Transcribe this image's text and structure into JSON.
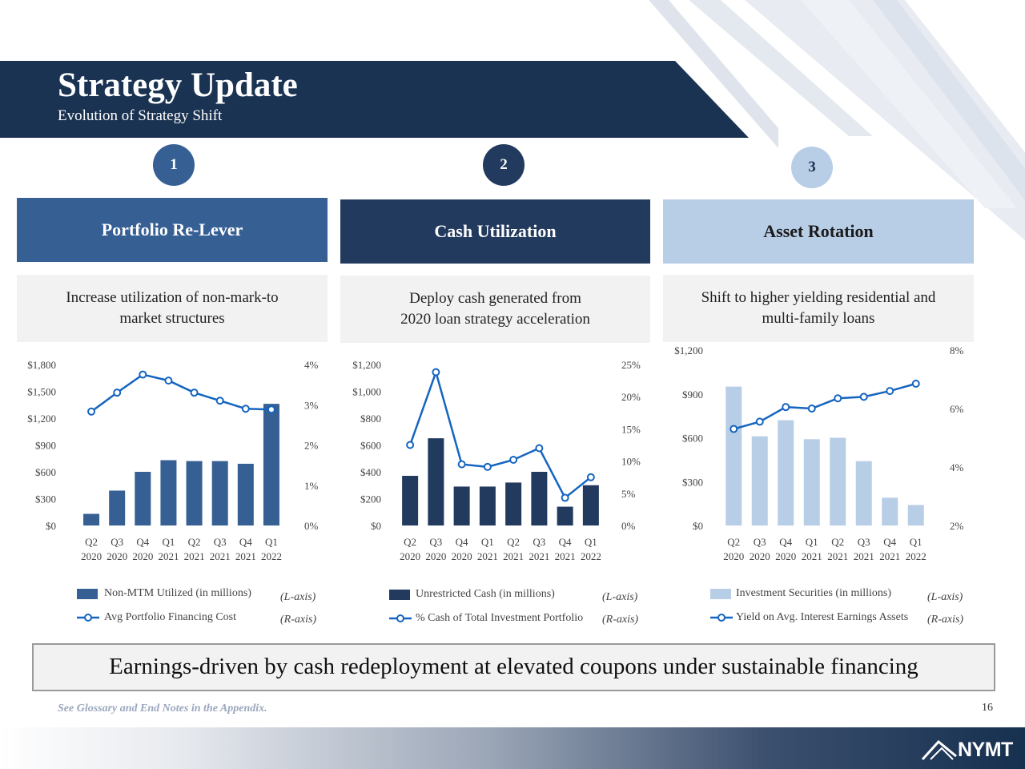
{
  "header": {
    "title": "Strategy Update",
    "subtitle": "Evolution of Strategy Shift"
  },
  "colors": {
    "navy": "#1b3352",
    "pillar1": "#365f93",
    "pillar2": "#223a5e",
    "pillar3": "#b8cde6",
    "line_blue": "#1565c0"
  },
  "pillars": [
    {
      "number": "1",
      "title": "Portfolio Re-Lever",
      "description_lines": [
        "Increase utilization of non-mark-to",
        "market structures"
      ]
    },
    {
      "number": "2",
      "title": "Cash Utilization",
      "description_lines": [
        "Deploy cash generated from",
        "2020 loan strategy acceleration"
      ]
    },
    {
      "number": "3",
      "title": "Asset Rotation",
      "description_lines": [
        "Shift to higher yielding residential and",
        "multi-family loans"
      ]
    }
  ],
  "chart_data": [
    {
      "type": "bar",
      "categories": [
        [
          "Q2",
          "2020"
        ],
        [
          "Q3",
          "2020"
        ],
        [
          "Q4",
          "2020"
        ],
        [
          "Q1",
          "2021"
        ],
        [
          "Q2",
          "2021"
        ],
        [
          "Q3",
          "2021"
        ],
        [
          "Q4",
          "2021"
        ],
        [
          "Q1",
          "2022"
        ]
      ],
      "y_left_ticks": [
        "$0",
        "$300",
        "$600",
        "$900",
        "$1,200",
        "$1,500",
        "$1,800"
      ],
      "y_left_range": [
        0,
        1800
      ],
      "y_right_ticks": [
        "0%",
        "1%",
        "2%",
        "3%",
        "4%"
      ],
      "y_right_range": [
        0,
        4
      ],
      "series": [
        {
          "name": "Non-MTM Utilized (in millions)",
          "kind": "bar",
          "axis": "L-axis",
          "values": [
            130,
            390,
            600,
            730,
            720,
            720,
            690,
            1360
          ]
        },
        {
          "name": "Avg Portfolio Financing Cost",
          "kind": "line",
          "axis": "R-axis",
          "values": [
            2.83,
            3.3,
            3.75,
            3.6,
            3.3,
            3.1,
            2.9,
            2.88
          ]
        }
      ],
      "legend": [
        {
          "label": "Non-MTM Utilized (in millions)",
          "axis": "(L-axis)"
        },
        {
          "label": "Avg Portfolio Financing Cost",
          "axis": "(R-axis)"
        }
      ],
      "colors": {
        "bar": "#365f93",
        "line": "#1565c0"
      }
    },
    {
      "type": "bar",
      "categories": [
        [
          "Q2",
          "2020"
        ],
        [
          "Q3",
          "2020"
        ],
        [
          "Q4",
          "2020"
        ],
        [
          "Q1",
          "2021"
        ],
        [
          "Q2",
          "2021"
        ],
        [
          "Q3",
          "2021"
        ],
        [
          "Q4",
          "2021"
        ],
        [
          "Q1",
          "2022"
        ]
      ],
      "y_left_ticks": [
        "$0",
        "$200",
        "$400",
        "$600",
        "$800",
        "$1,000",
        "$1,200"
      ],
      "y_left_range": [
        0,
        1200
      ],
      "y_right_ticks": [
        "0%",
        "5%",
        "10%",
        "15%",
        "20%",
        "25%"
      ],
      "y_right_range": [
        0,
        25
      ],
      "series": [
        {
          "name": "Unrestricted Cash (in millions)",
          "kind": "bar",
          "axis": "L-axis",
          "values": [
            370,
            650,
            290,
            290,
            320,
            400,
            140,
            300
          ]
        },
        {
          "name": "% Cash of Total Investment Portfolio",
          "kind": "line",
          "axis": "R-axis",
          "values": [
            12.5,
            23.8,
            9.5,
            9.1,
            10.2,
            12,
            4.3,
            7.5
          ]
        }
      ],
      "legend": [
        {
          "label": "Unrestricted Cash (in millions)",
          "axis": "(L-axis)"
        },
        {
          "label": "% Cash of Total Investment Portfolio",
          "axis": "(R-axis)"
        }
      ],
      "colors": {
        "bar": "#223a5e",
        "line": "#1565c0"
      }
    },
    {
      "type": "bar",
      "categories": [
        [
          "Q2",
          "2020"
        ],
        [
          "Q3",
          "2020"
        ],
        [
          "Q4",
          "2020"
        ],
        [
          "Q1",
          "2021"
        ],
        [
          "Q2",
          "2021"
        ],
        [
          "Q3",
          "2021"
        ],
        [
          "Q4",
          "2021"
        ],
        [
          "Q1",
          "2022"
        ]
      ],
      "y_left_ticks": [
        "$0",
        "$300",
        "$600",
        "$900",
        "$1,200"
      ],
      "y_left_range": [
        0,
        1200
      ],
      "y_right_ticks": [
        "2%",
        "4%",
        "6%",
        "8%"
      ],
      "y_right_range": [
        2,
        8
      ],
      "series": [
        {
          "name": "Investment Securities (in millions)",
          "kind": "bar",
          "axis": "L-axis",
          "values": [
            950,
            610,
            720,
            590,
            600,
            440,
            190,
            140
          ]
        },
        {
          "name": "Yield on Avg. Interest Earnings Assets",
          "kind": "line",
          "axis": "R-axis",
          "values": [
            5.3,
            5.55,
            6.05,
            6.0,
            6.35,
            6.4,
            6.6,
            6.85
          ]
        }
      ],
      "legend": [
        {
          "label": "Investment Securities (in millions)",
          "axis": "(L-axis)"
        },
        {
          "label": "Yield on Avg. Interest Earnings Assets",
          "axis": "(R-axis)"
        }
      ],
      "colors": {
        "bar": "#b8cde6",
        "line": "#1565c0"
      }
    }
  ],
  "conclusion": "Earnings-driven by cash redeployment at elevated coupons under sustainable financing",
  "footnote": "See Glossary and End Notes in the Appendix.",
  "page_number": "16",
  "logo_text": "NYMT"
}
